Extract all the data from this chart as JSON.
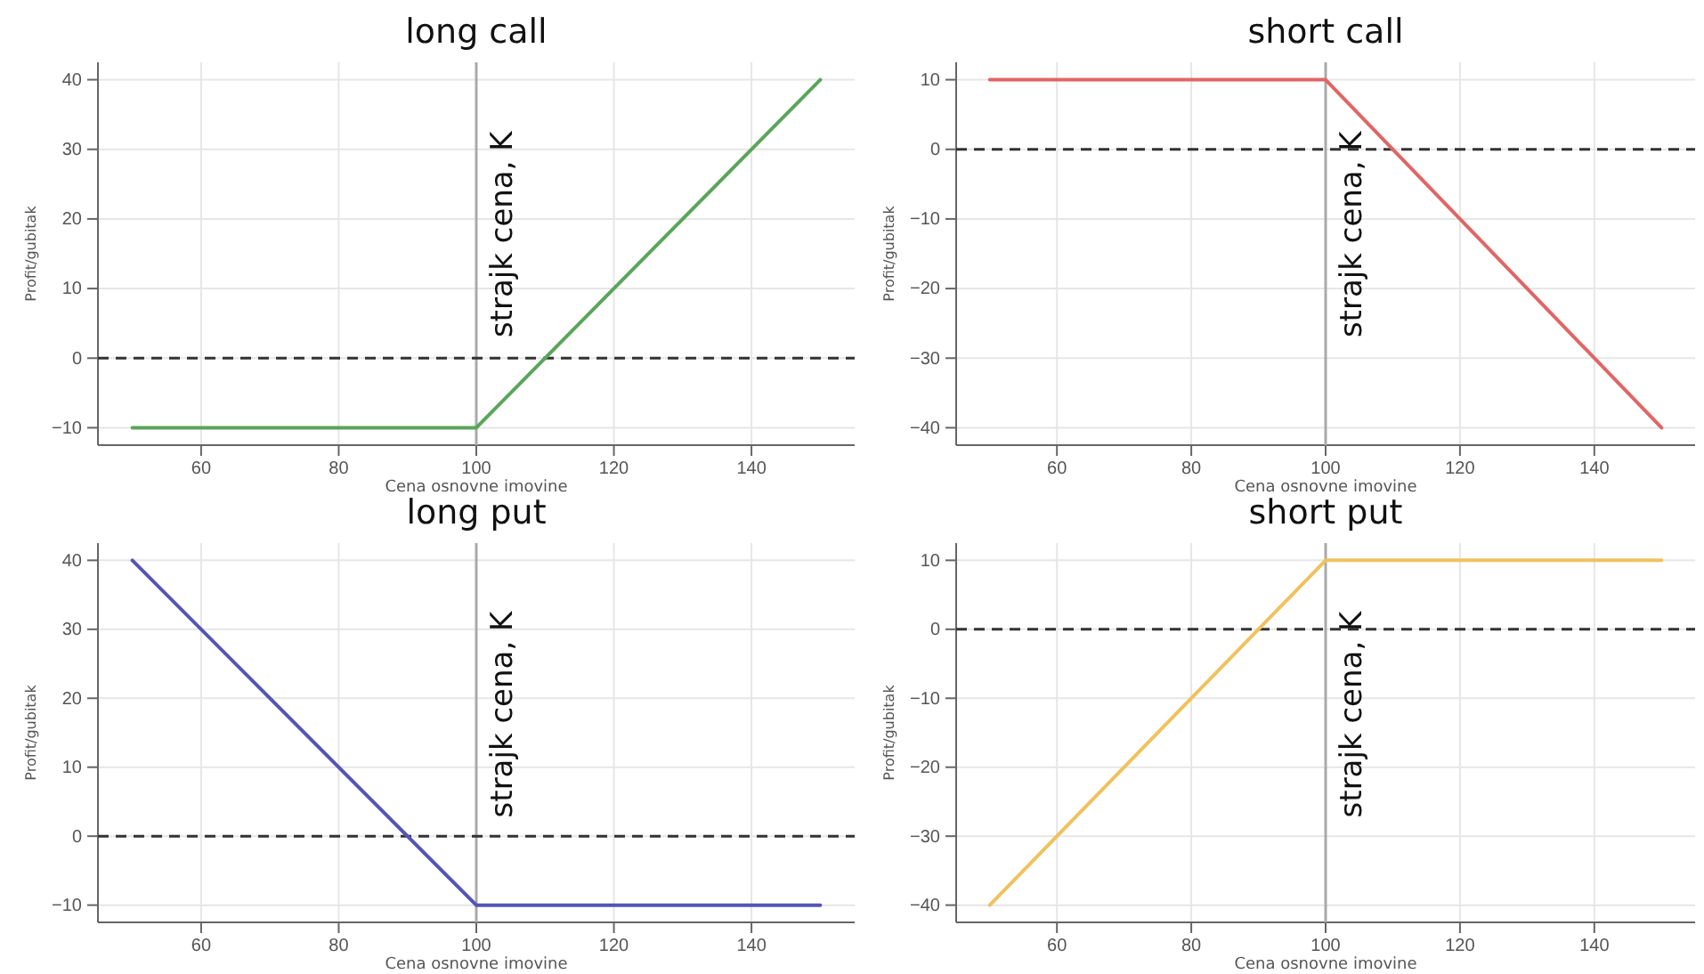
{
  "chart_data": [
    {
      "type": "line",
      "title": "long call",
      "xlabel": "Cena osnovne imovine",
      "ylabel": "Profit/gubitak",
      "xlim": [
        45,
        155
      ],
      "ylim": [
        -12.5,
        42.5
      ],
      "xticks": [
        60,
        80,
        100,
        120,
        140
      ],
      "yticks": [
        -10,
        0,
        10,
        20,
        30,
        40
      ],
      "grid": true,
      "x": [
        50,
        100,
        150
      ],
      "series": [
        {
          "color": "#5aa55a",
          "values": [
            -10,
            -10,
            40
          ]
        }
      ],
      "ref_lines": [
        {
          "axis": "x",
          "value": 100,
          "label": "strajk cena, K",
          "color": "#aaaaaa",
          "line_style": "solid"
        },
        {
          "axis": "y",
          "value": 0,
          "color": "#333333",
          "line_style": "dashed"
        }
      ]
    },
    {
      "type": "line",
      "title": "short call",
      "xlabel": "Cena osnovne imovine",
      "ylabel": "Profit/gubitak",
      "xlim": [
        45,
        155
      ],
      "ylim": [
        -42.5,
        12.5
      ],
      "xticks": [
        60,
        80,
        100,
        120,
        140
      ],
      "yticks": [
        -40,
        -30,
        -20,
        -10,
        0,
        10
      ],
      "grid": true,
      "x": [
        50,
        100,
        150
      ],
      "series": [
        {
          "color": "#e06666",
          "values": [
            10,
            10,
            -40
          ]
        }
      ],
      "ref_lines": [
        {
          "axis": "x",
          "value": 100,
          "label": "strajk cena, K",
          "color": "#aaaaaa",
          "line_style": "solid"
        },
        {
          "axis": "y",
          "value": 0,
          "color": "#333333",
          "line_style": "dashed"
        }
      ]
    },
    {
      "type": "line",
      "title": "long put",
      "xlabel": "Cena osnovne imovine",
      "ylabel": "Profit/gubitak",
      "xlim": [
        45,
        155
      ],
      "ylim": [
        -12.5,
        42.5
      ],
      "xticks": [
        60,
        80,
        100,
        120,
        140
      ],
      "yticks": [
        -10,
        0,
        10,
        20,
        30,
        40
      ],
      "grid": true,
      "x": [
        50,
        100,
        150
      ],
      "series": [
        {
          "color": "#5555b5",
          "values": [
            40,
            -10,
            -10
          ]
        }
      ],
      "ref_lines": [
        {
          "axis": "x",
          "value": 100,
          "label": "strajk cena, K",
          "color": "#aaaaaa",
          "line_style": "solid"
        },
        {
          "axis": "y",
          "value": 0,
          "color": "#333333",
          "line_style": "dashed"
        }
      ]
    },
    {
      "type": "line",
      "title": "short put",
      "xlabel": "Cena osnovne imovine",
      "ylabel": "Profit/gubitak",
      "xlim": [
        45,
        155
      ],
      "ylim": [
        -42.5,
        12.5
      ],
      "xticks": [
        60,
        80,
        100,
        120,
        140
      ],
      "yticks": [
        -40,
        -30,
        -20,
        -10,
        0,
        10
      ],
      "grid": true,
      "x": [
        50,
        100,
        150
      ],
      "series": [
        {
          "color": "#f0c25e",
          "values": [
            -40,
            10,
            10
          ]
        }
      ],
      "ref_lines": [
        {
          "axis": "x",
          "value": 100,
          "label": "strajk cena, K",
          "color": "#aaaaaa",
          "line_style": "solid"
        },
        {
          "axis": "y",
          "value": 0,
          "color": "#333333",
          "line_style": "dashed"
        }
      ]
    }
  ]
}
